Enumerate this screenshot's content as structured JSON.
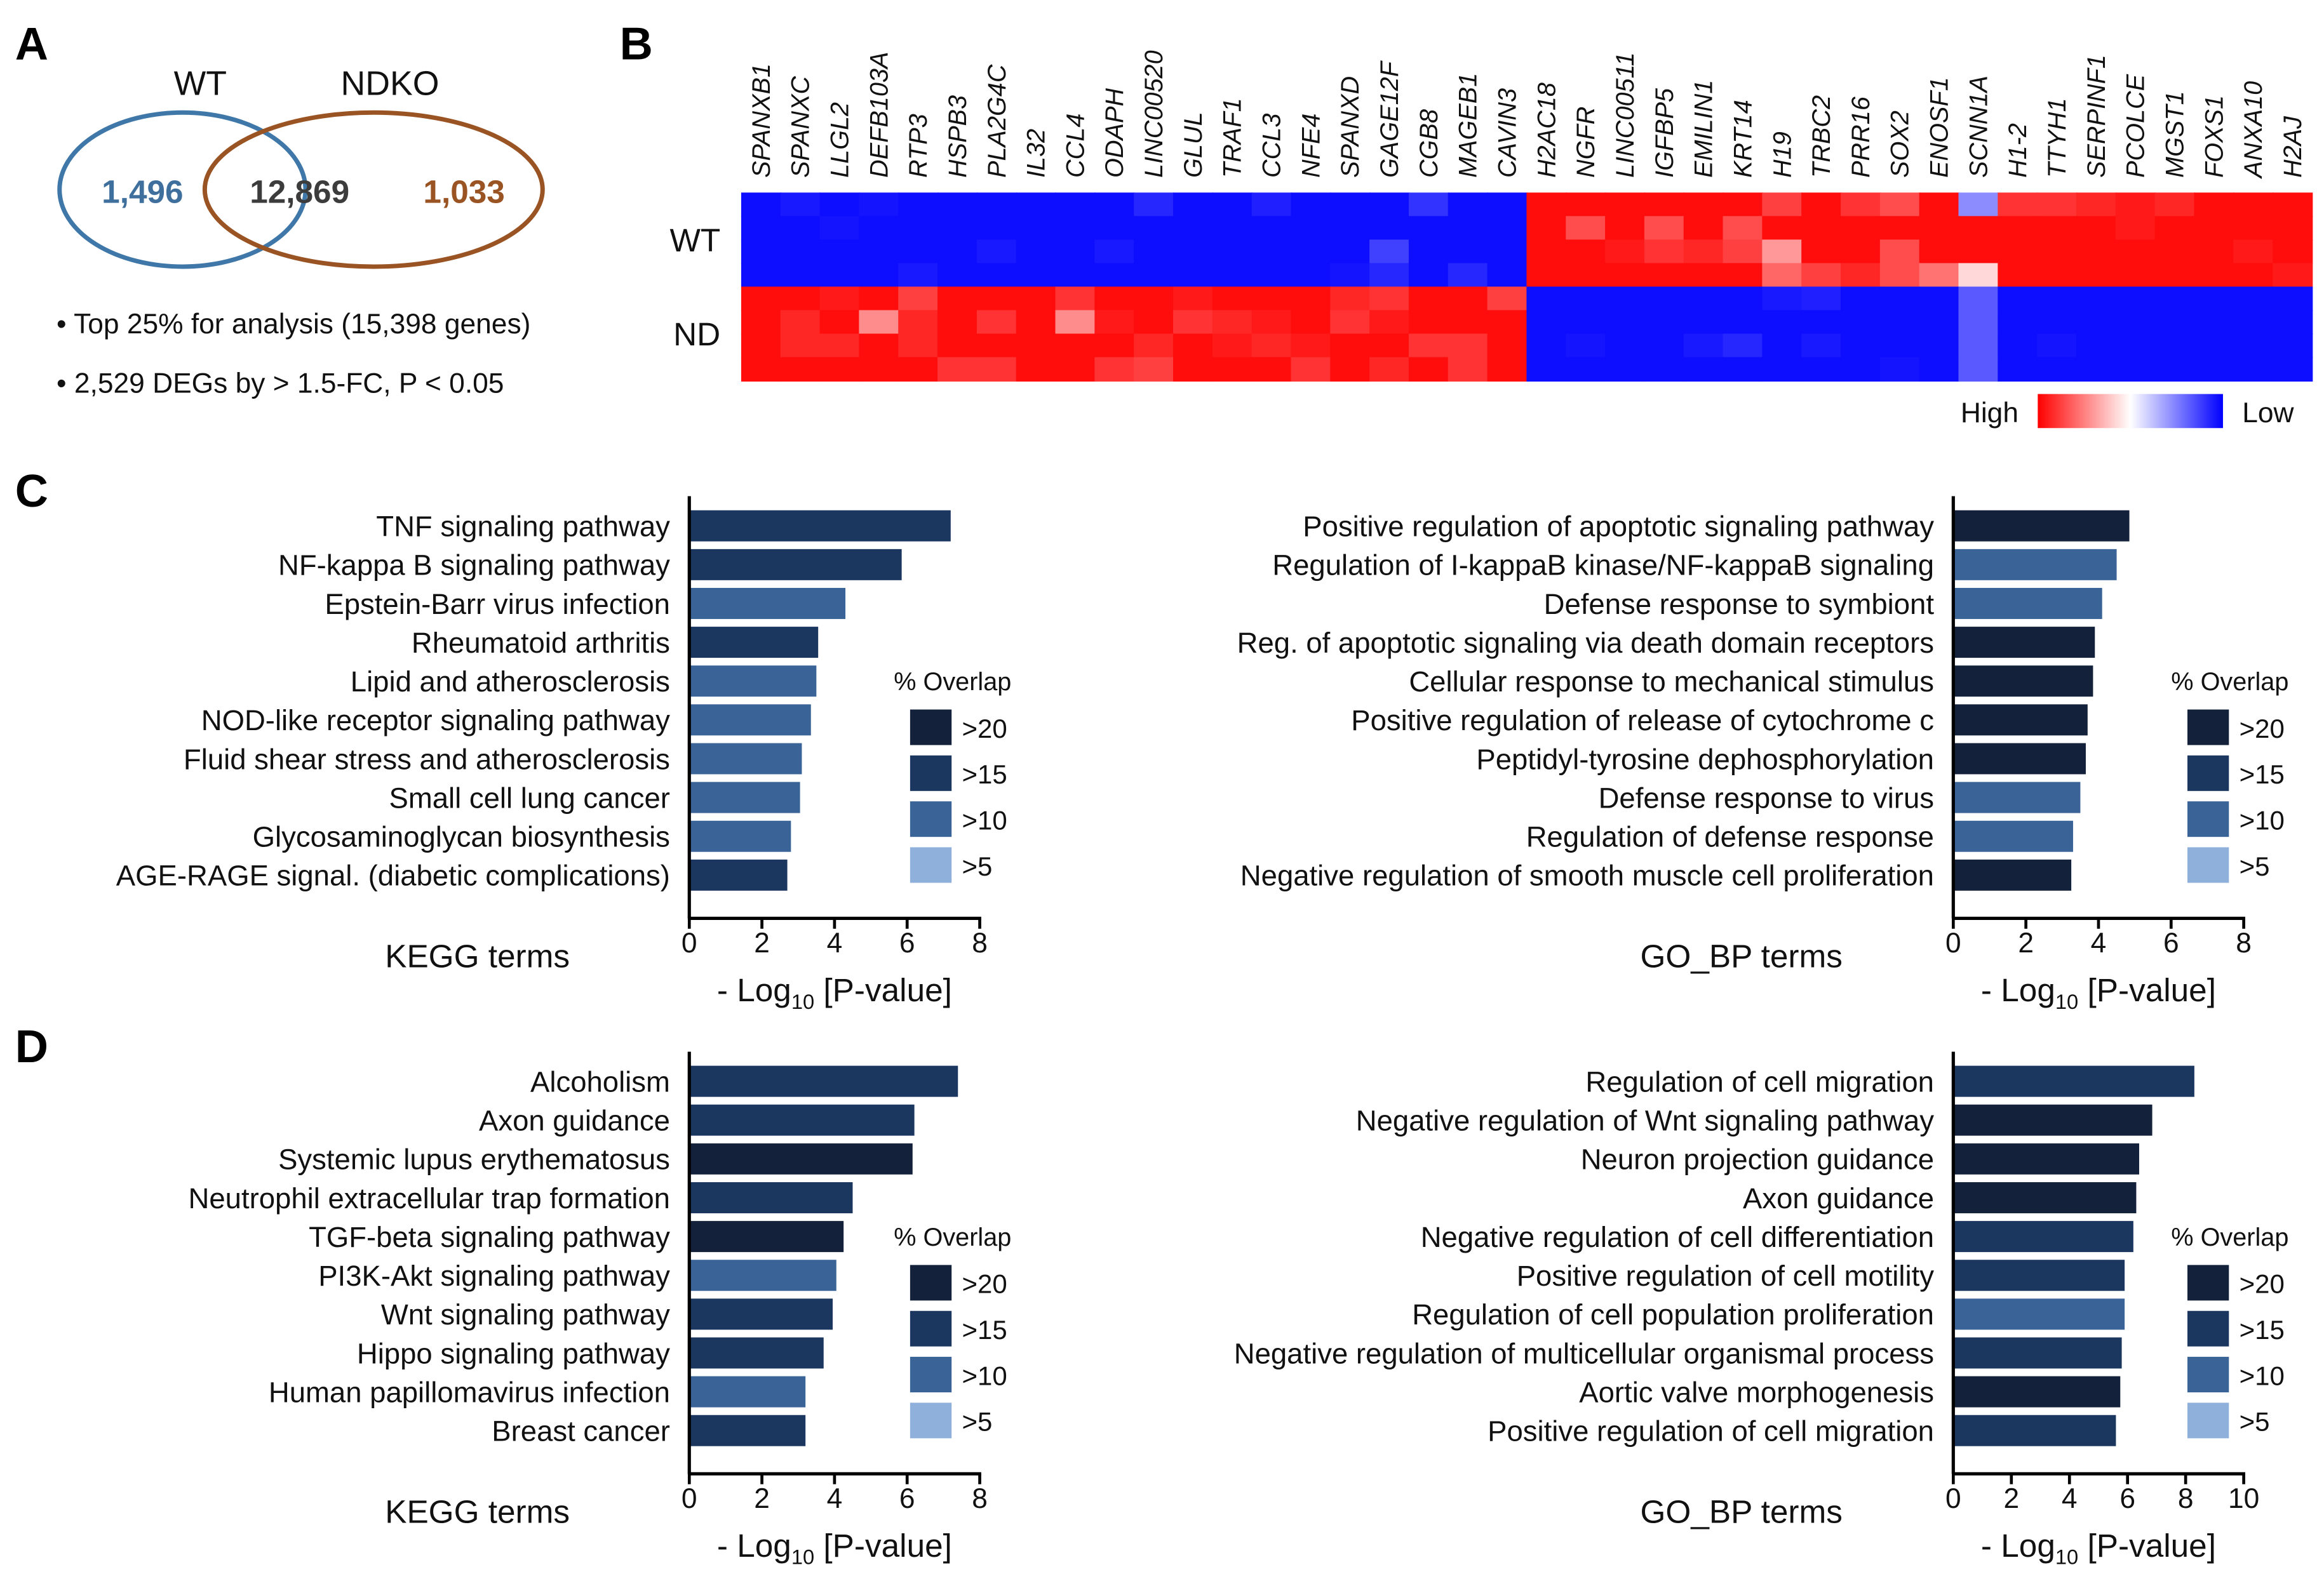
{
  "panels": {
    "a": "A",
    "b": "B",
    "c": "C",
    "d": "D"
  },
  "venn": {
    "set1_name": "WT",
    "set2_name": "NDKO",
    "only1": "1,496",
    "both": "12,869",
    "only2": "1,033",
    "colors": {
      "set1": "#3f78a8",
      "set2": "#9a5424",
      "both_text": "#3c3c3c"
    },
    "notes": [
      "• Top 25% for analysis (15,398 genes)",
      "• 2,529 DEGs by > 1.5-FC, P < 0.05"
    ]
  },
  "overlap_legend": {
    "title": "% Overlap",
    "items": [
      {
        "label": ">20",
        "color": "#13213a"
      },
      {
        "label": ">15",
        "color": "#1b3760"
      },
      {
        "label": ">10",
        "color": "#3a6398"
      },
      {
        "label": ">5",
        "color": "#8fb0db"
      }
    ]
  },
  "axis_label": {
    "prefix": "- Log",
    "sub": "10",
    "suffix": " [P-value]"
  },
  "chart_data": [
    {
      "type": "heatmap",
      "panel": "B",
      "columns": [
        "SPANXB1",
        "SPANXC",
        "LLGL2",
        "DEFB103A",
        "RTP3",
        "HSPB3",
        "PLA2G4C",
        "IL32",
        "CCL4",
        "ODAPH",
        "LINC00520",
        "GLUL",
        "TRAF1",
        "CCL3",
        "NFE4",
        "SPANXD",
        "GAGE12F",
        "CGB8",
        "MAGEB1",
        "CAVIN3",
        "H2AC18",
        "NGFR",
        "LINC00511",
        "IGFBP5",
        "EMILIN1",
        "KRT14",
        "H19",
        "TRBC2",
        "PRR16",
        "SOX2",
        "ENOSF1",
        "SCNN1A",
        "H1-2",
        "TTYH1",
        "SERPINF1",
        "PCOLCE",
        "MGST1",
        "FOXS1",
        "ANXA10",
        "H2AJ"
      ],
      "row_groups": [
        {
          "label": "WT",
          "rows": 4
        },
        {
          "label": "ND",
          "rows": 4
        }
      ],
      "values": [
        [
          -0.95,
          -0.9,
          -0.95,
          -0.92,
          -0.95,
          -0.95,
          -0.95,
          -0.95,
          -0.95,
          -0.95,
          -0.85,
          -0.95,
          -0.95,
          -0.88,
          -0.95,
          -0.95,
          -0.95,
          -0.8,
          -0.95,
          -0.95,
          0.95,
          0.95,
          0.95,
          0.95,
          0.95,
          0.95,
          0.75,
          0.95,
          0.8,
          0.7,
          0.95,
          -0.45,
          0.8,
          0.8,
          0.85,
          0.9,
          0.85,
          0.95,
          0.95,
          0.95
        ],
        [
          -0.95,
          -0.95,
          -0.92,
          -0.95,
          -0.95,
          -0.95,
          -0.95,
          -0.95,
          -0.95,
          -0.95,
          -0.95,
          -0.95,
          -0.95,
          -0.95,
          -0.95,
          -0.95,
          -0.95,
          -0.95,
          -0.95,
          -0.95,
          0.95,
          0.7,
          0.95,
          0.7,
          0.95,
          0.7,
          0.95,
          0.95,
          0.95,
          0.95,
          0.95,
          0.95,
          0.95,
          0.95,
          0.95,
          0.9,
          0.95,
          0.95,
          0.95,
          0.95
        ],
        [
          -0.95,
          -0.95,
          -0.95,
          -0.95,
          -0.95,
          -0.95,
          -0.9,
          -0.95,
          -0.95,
          -0.9,
          -0.95,
          -0.95,
          -0.95,
          -0.95,
          -0.95,
          -0.95,
          -0.75,
          -0.95,
          -0.95,
          -0.95,
          0.95,
          0.95,
          0.9,
          0.8,
          0.85,
          0.75,
          0.4,
          0.95,
          0.95,
          0.7,
          0.95,
          0.95,
          0.95,
          0.95,
          0.95,
          0.95,
          0.95,
          0.95,
          0.9,
          0.95
        ],
        [
          -0.95,
          -0.95,
          -0.95,
          -0.95,
          -0.9,
          -0.95,
          -0.95,
          -0.95,
          -0.95,
          -0.95,
          -0.95,
          -0.95,
          -0.95,
          -0.95,
          -0.95,
          -0.92,
          -0.85,
          -0.95,
          -0.85,
          -0.95,
          0.95,
          0.95,
          0.95,
          0.95,
          0.95,
          0.95,
          0.6,
          0.75,
          0.85,
          0.7,
          0.55,
          0.15,
          0.95,
          0.95,
          0.95,
          0.95,
          0.95,
          0.95,
          0.95,
          0.9
        ],
        [
          0.95,
          0.95,
          0.9,
          0.95,
          0.75,
          0.95,
          0.95,
          0.95,
          0.8,
          0.95,
          0.95,
          0.9,
          0.95,
          0.95,
          0.95,
          0.85,
          0.8,
          0.95,
          0.95,
          0.75,
          -0.95,
          -0.95,
          -0.95,
          -0.95,
          -0.95,
          -0.95,
          -0.9,
          -0.88,
          -0.95,
          -0.95,
          -0.95,
          -0.65,
          -0.95,
          -0.95,
          -0.95,
          -0.95,
          -0.95,
          -0.95,
          -0.95,
          -0.95
        ],
        [
          0.95,
          0.85,
          0.95,
          0.45,
          0.85,
          0.95,
          0.8,
          0.95,
          0.45,
          0.9,
          0.95,
          0.8,
          0.85,
          0.9,
          0.95,
          0.8,
          0.9,
          0.95,
          0.95,
          0.95,
          -0.95,
          -0.95,
          -0.95,
          -0.95,
          -0.95,
          -0.95,
          -0.95,
          -0.95,
          -0.95,
          -0.95,
          -0.95,
          -0.65,
          -0.95,
          -0.95,
          -0.95,
          -0.95,
          -0.95,
          -0.95,
          -0.95,
          -0.95
        ],
        [
          0.95,
          0.85,
          0.85,
          0.95,
          0.85,
          0.95,
          0.95,
          0.95,
          0.95,
          0.95,
          0.85,
          0.95,
          0.9,
          0.85,
          0.9,
          0.95,
          0.95,
          0.8,
          0.8,
          0.95,
          -0.95,
          -0.92,
          -0.95,
          -0.95,
          -0.9,
          -0.85,
          -0.95,
          -0.9,
          -0.95,
          -0.95,
          -0.95,
          -0.65,
          -0.95,
          -0.92,
          -0.95,
          -0.95,
          -0.95,
          -0.95,
          -0.95,
          -0.95
        ],
        [
          0.95,
          0.95,
          0.95,
          0.95,
          0.95,
          0.8,
          0.8,
          0.95,
          0.95,
          0.8,
          0.75,
          0.95,
          0.95,
          0.95,
          0.8,
          0.95,
          0.85,
          0.95,
          0.8,
          0.95,
          -0.95,
          -0.95,
          -0.95,
          -0.95,
          -0.95,
          -0.95,
          -0.95,
          -0.95,
          -0.95,
          -0.92,
          -0.95,
          -0.65,
          -0.95,
          -0.95,
          -0.95,
          -0.95,
          -0.95,
          -0.95,
          -0.95,
          -0.95
        ]
      ],
      "colorscale": {
        "high": "#ff0000",
        "mid": "#ffffff",
        "low": "#0000ff",
        "high_label": "High",
        "low_label": "Low"
      }
    },
    {
      "type": "bar",
      "panel": "C",
      "title": "KEGG terms",
      "xlim": [
        0,
        8
      ],
      "xticks": [
        0,
        2,
        4,
        6,
        8
      ],
      "categories": [
        "TNF signaling pathway",
        "NF-kappa B signaling pathway",
        "Epstein-Barr virus infection",
        "Rheumatoid arthritis",
        "Lipid and atherosclerosis",
        "NOD-like receptor signaling pathway",
        "Fluid shear stress and atherosclerosis",
        "Small cell lung cancer",
        "Glycosaminoglycan biosynthesis",
        "AGE-RAGE signal. (diabetic complications)"
      ],
      "values": [
        7.2,
        5.85,
        4.3,
        3.55,
        3.5,
        3.35,
        3.1,
        3.05,
        2.8,
        2.7
      ],
      "overlap": [
        ">15",
        ">15",
        ">10",
        ">15",
        ">10",
        ">10",
        ">10",
        ">10",
        ">10",
        ">15"
      ]
    },
    {
      "type": "bar",
      "panel": "C",
      "title": "GO_BP terms",
      "xlim": [
        0,
        8
      ],
      "xticks": [
        0,
        2,
        4,
        6,
        8
      ],
      "categories": [
        "Positive regulation of apoptotic signaling pathway",
        "Regulation of I-kappaB kinase/NF-kappaB signaling",
        "Defense response to symbiont",
        "Reg. of apoptotic signaling via death domain receptors",
        "Cellular response to mechanical stimulus",
        "Positive regulation of release of cytochrome c",
        "Peptidyl-tyrosine dephosphorylation",
        "Defense response to virus",
        "Regulation of defense response",
        "Negative regulation of smooth muscle cell proliferation"
      ],
      "values": [
        4.85,
        4.5,
        4.1,
        3.9,
        3.85,
        3.7,
        3.65,
        3.5,
        3.3,
        3.25
      ],
      "overlap": [
        ">20",
        ">10",
        ">10",
        ">20",
        ">20",
        ">20",
        ">20",
        ">10",
        ">10",
        ">20"
      ]
    },
    {
      "type": "bar",
      "panel": "D",
      "title": "KEGG terms",
      "xlim": [
        0,
        8
      ],
      "xticks": [
        0,
        2,
        4,
        6,
        8
      ],
      "categories": [
        "Alcoholism",
        "Axon guidance",
        "Systemic lupus erythematosus",
        "Neutrophil extracellular trap formation",
        "TGF-beta signaling pathway",
        "PI3K-Akt signaling pathway",
        "Wnt signaling pathway",
        "Hippo signaling pathway",
        "Human papillomavirus infection",
        "Breast cancer"
      ],
      "values": [
        7.4,
        6.2,
        6.15,
        4.5,
        4.25,
        4.05,
        3.95,
        3.7,
        3.2,
        3.2
      ],
      "overlap": [
        ">15",
        ">15",
        ">20",
        ">15",
        ">20",
        ">10",
        ">15",
        ">15",
        ">10",
        ">15"
      ]
    },
    {
      "type": "bar",
      "panel": "D",
      "title": "GO_BP terms",
      "xlim": [
        0,
        10
      ],
      "xticks": [
        0,
        2,
        4,
        6,
        8,
        10
      ],
      "categories": [
        "Regulation of cell migration",
        "Negative regulation of Wnt signaling pathway",
        "Neuron projection guidance",
        "Axon guidance",
        "Negative regulation of cell differentiation",
        "Positive regulation of cell motility",
        "Regulation of cell population proliferation",
        "Negative regulation of multicellular organismal process",
        "Aortic valve morphogenesis",
        "Positive regulation of cell migration"
      ],
      "values": [
        8.3,
        6.85,
        6.4,
        6.3,
        6.2,
        5.9,
        5.9,
        5.8,
        5.75,
        5.6
      ],
      "overlap": [
        ">15",
        ">20",
        ">20",
        ">20",
        ">15",
        ">15",
        ">10",
        ">15",
        ">20",
        ">15"
      ]
    }
  ]
}
